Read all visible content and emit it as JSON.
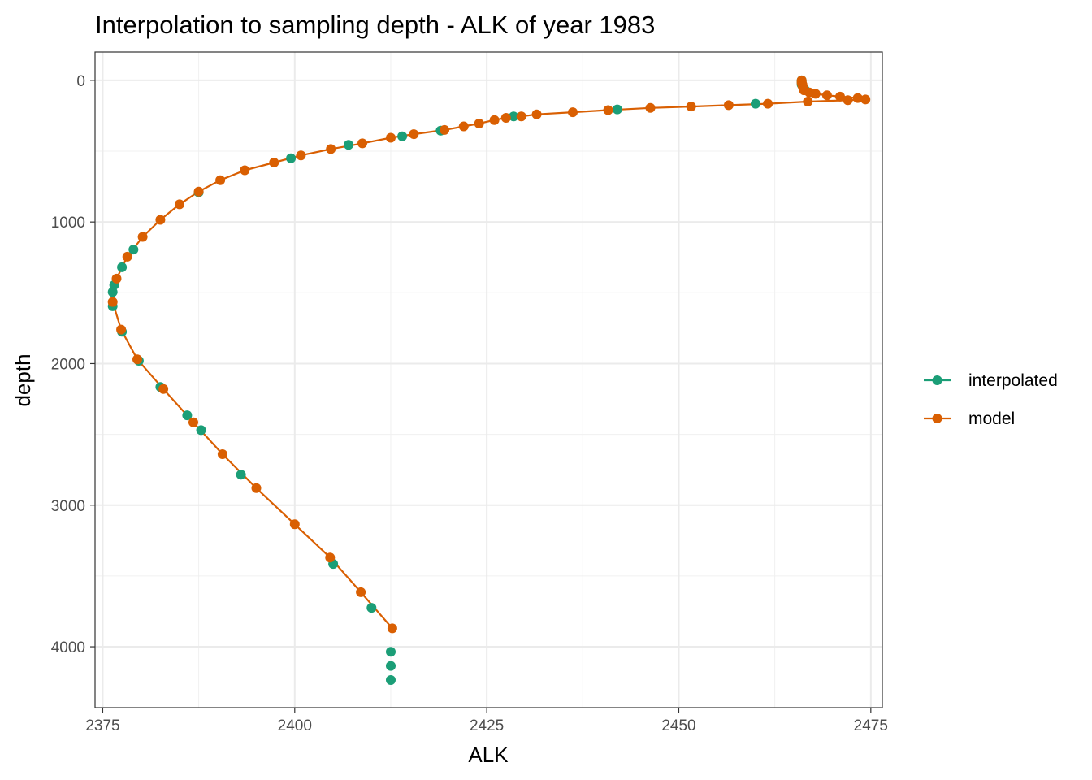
{
  "chart_data": {
    "type": "line",
    "title": "Interpolation to sampling depth - ALK of year 1983",
    "xlabel": "ALK",
    "ylabel": "depth",
    "xlim": [
      2374,
      2476.5
    ],
    "ylim": [
      4430,
      -200
    ],
    "y_reversed": true,
    "x_ticks": [
      2375,
      2400,
      2425,
      2450,
      2475
    ],
    "y_ticks": [
      0,
      1000,
      2000,
      3000,
      4000
    ],
    "grid": true,
    "legend": "right",
    "series": [
      {
        "name": "interpolated",
        "color": "#1b9e77",
        "connected": false,
        "points": [
          [
            2466.0,
            0
          ],
          [
            2466.0,
            10
          ],
          [
            2466.0,
            20
          ],
          [
            2466.0,
            30
          ],
          [
            2466.2,
            50
          ],
          [
            2466.4,
            65
          ],
          [
            2460.0,
            165
          ],
          [
            2442.0,
            205
          ],
          [
            2428.5,
            255
          ],
          [
            2419.0,
            355
          ],
          [
            2414.0,
            395
          ],
          [
            2407.0,
            455
          ],
          [
            2399.5,
            550
          ],
          [
            2387.5,
            790
          ],
          [
            2379.0,
            1195
          ],
          [
            2377.5,
            1320
          ],
          [
            2376.5,
            1445
          ],
          [
            2376.3,
            1495
          ],
          [
            2376.3,
            1595
          ],
          [
            2377.5,
            1775
          ],
          [
            2379.7,
            1980
          ],
          [
            2382.5,
            2165
          ],
          [
            2386.0,
            2365
          ],
          [
            2387.8,
            2470
          ],
          [
            2393.0,
            2785
          ],
          [
            2405.0,
            3415
          ],
          [
            2410.0,
            3725
          ],
          [
            2412.5,
            4035
          ],
          [
            2412.5,
            4135
          ],
          [
            2412.5,
            4235
          ]
        ]
      },
      {
        "name": "model",
        "color": "#d95f02",
        "connected": true,
        "points": [
          [
            2466.0,
            0
          ],
          [
            2466.0,
            10
          ],
          [
            2466.0,
            20
          ],
          [
            2466.1,
            30
          ],
          [
            2466.1,
            40
          ],
          [
            2466.2,
            55
          ],
          [
            2466.3,
            70
          ],
          [
            2467.0,
            85
          ],
          [
            2467.8,
            95
          ],
          [
            2469.3,
            105
          ],
          [
            2471.0,
            115
          ],
          [
            2473.3,
            125
          ],
          [
            2474.3,
            135
          ],
          [
            2472.0,
            140
          ],
          [
            2466.8,
            150
          ],
          [
            2461.6,
            165
          ],
          [
            2456.5,
            175
          ],
          [
            2451.6,
            185
          ],
          [
            2446.3,
            195
          ],
          [
            2440.8,
            210
          ],
          [
            2436.2,
            225
          ],
          [
            2431.5,
            240
          ],
          [
            2429.5,
            255
          ],
          [
            2427.5,
            265
          ],
          [
            2426.0,
            280
          ],
          [
            2424.0,
            305
          ],
          [
            2422.0,
            325
          ],
          [
            2419.5,
            350
          ],
          [
            2415.5,
            380
          ],
          [
            2412.5,
            405
          ],
          [
            2408.8,
            445
          ],
          [
            2404.7,
            485
          ],
          [
            2400.8,
            530
          ],
          [
            2397.3,
            580
          ],
          [
            2393.5,
            635
          ],
          [
            2390.3,
            705
          ],
          [
            2387.5,
            785
          ],
          [
            2385.0,
            875
          ],
          [
            2382.5,
            985
          ],
          [
            2380.2,
            1105
          ],
          [
            2378.2,
            1245
          ],
          [
            2376.8,
            1400
          ],
          [
            2376.3,
            1565
          ],
          [
            2377.4,
            1760
          ],
          [
            2379.5,
            1970
          ],
          [
            2382.9,
            2180
          ],
          [
            2386.8,
            2415
          ],
          [
            2390.6,
            2640
          ],
          [
            2395.0,
            2880
          ],
          [
            2400.0,
            3135
          ],
          [
            2404.6,
            3370
          ],
          [
            2408.6,
            3615
          ],
          [
            2412.7,
            3870
          ]
        ]
      }
    ]
  }
}
